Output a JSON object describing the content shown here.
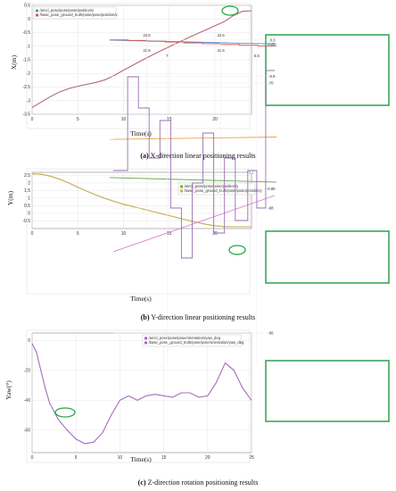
{
  "colors": {
    "frame": "#2e9e4a",
    "zoom_frame": "#3aa65a",
    "ellipse": "#22a845",
    "blue": "#5b8fd6",
    "red": "#d9534f",
    "green": "#6ab04c",
    "orange": "#e8a24a",
    "purple": "#b05ad0",
    "mauve": "#9b6fb3"
  },
  "captions": {
    "a_letter": "(a)",
    "a_text": " X-direction linear positioning results",
    "b_letter": "(b)",
    "b_text": " Y-direction linear positioning results",
    "c_letter": "(c)",
    "c_text": " Z-direction rotation positioning results"
  },
  "chart_data": [
    {
      "type": "line",
      "panel": "a",
      "xlabel": "Time(s)",
      "ylabel": "X(m)",
      "xlim": [
        0,
        24
      ],
      "ylim": [
        -3.5,
        0.5
      ],
      "xticks": [
        "0",
        "5",
        "10",
        "15",
        "20"
      ],
      "yticks": [
        "0.5",
        "0",
        "-0.5",
        "-1",
        "-1.5",
        "-2",
        "-2.5",
        "-3",
        "-3.5"
      ],
      "legend": [
        "/amcl_pose/pose/pose/position/x",
        "/base_pose_ground_truth/pose/pose/position/x"
      ],
      "series": [
        {
          "name": "/amcl_pose/pose/pose/position/x",
          "x": [
            0,
            1,
            2,
            3,
            4,
            5,
            6,
            7,
            8,
            9,
            10,
            11,
            12,
            13,
            14,
            15,
            16,
            17,
            18,
            19,
            20,
            21,
            22,
            23,
            24
          ],
          "y": [
            -3.25,
            -3.05,
            -2.85,
            -2.68,
            -2.56,
            -2.47,
            -2.4,
            -2.33,
            -2.23,
            -2.07,
            -1.88,
            -1.7,
            -1.52,
            -1.35,
            -1.18,
            -1.02,
            -0.86,
            -0.7,
            -0.55,
            -0.4,
            -0.25,
            -0.1,
            0.12,
            0.28,
            0.3
          ]
        },
        {
          "name": "/base_pose_ground_truth/pose/pose/position/x",
          "x": [
            0,
            1,
            2,
            3,
            4,
            5,
            6,
            7,
            8,
            9,
            10,
            11,
            12,
            13,
            14,
            15,
            16,
            17,
            18,
            19,
            20,
            21,
            22,
            23,
            24
          ],
          "y": [
            -3.25,
            -3.05,
            -2.85,
            -2.68,
            -2.56,
            -2.47,
            -2.4,
            -2.33,
            -2.23,
            -2.07,
            -1.88,
            -1.7,
            -1.52,
            -1.35,
            -1.18,
            -1.02,
            -0.86,
            -0.7,
            -0.55,
            -0.4,
            -0.25,
            -0.1,
            0.12,
            0.28,
            0.3
          ]
        }
      ],
      "inset": {
        "xticks": [
          "22.6",
          "22.8"
        ],
        "yticks": [
          "0.3",
          "0.25"
        ],
        "xlim": [
          22.45,
          22.9
        ],
        "ylim": [
          0.22,
          0.31
        ],
        "series": [
          {
            "name": "blue",
            "x": [
              22.45,
              22.9
            ],
            "y": [
              0.25,
              0.3
            ]
          },
          {
            "name": "red",
            "steps": [
              [
                22.45,
                0.225
              ],
              [
                22.5,
                0.225
              ],
              [
                22.5,
                0.235
              ],
              [
                22.55,
                0.235
              ],
              [
                22.55,
                0.245
              ],
              [
                22.6,
                0.245
              ],
              [
                22.6,
                0.255
              ],
              [
                22.65,
                0.255
              ],
              [
                22.65,
                0.265
              ],
              [
                22.7,
                0.265
              ],
              [
                22.7,
                0.275
              ],
              [
                22.75,
                0.275
              ],
              [
                22.75,
                0.285
              ],
              [
                22.8,
                0.285
              ],
              [
                22.8,
                0.295
              ],
              [
                22.85,
                0.295
              ],
              [
                22.85,
                0.302
              ],
              [
                22.9,
                0.302
              ]
            ]
          }
        ]
      }
    },
    {
      "type": "line",
      "panel": "b",
      "xlabel": "Time(s)",
      "ylabel": "Y(m)",
      "xlim": [
        0,
        24
      ],
      "ylim": [
        -1,
        2.7
      ],
      "xticks": [
        "0",
        "5",
        "10",
        "15",
        "20"
      ],
      "yticks": [
        "2.5",
        "2",
        "1.5",
        "1",
        "0.5",
        "0",
        "-0.5"
      ],
      "legend": [
        "/amcl_pose/pose/pose/position/y",
        "/base_pose_ground_truth/pose/pose/position/y"
      ],
      "series": [
        {
          "name": "/amcl_pose/pose/pose/position/y",
          "x": [
            0,
            1,
            2,
            3,
            4,
            5,
            6,
            7,
            8,
            9,
            10,
            11,
            12,
            13,
            14,
            15,
            16,
            17,
            18,
            19,
            20,
            21,
            22,
            23,
            24
          ],
          "y": [
            2.6,
            2.57,
            2.45,
            2.25,
            2.0,
            1.72,
            1.45,
            1.2,
            0.98,
            0.78,
            0.6,
            0.45,
            0.3,
            0.15,
            0.0,
            -0.15,
            -0.3,
            -0.45,
            -0.6,
            -0.72,
            -0.82,
            -0.87,
            -0.88,
            -0.88,
            -0.88
          ]
        },
        {
          "name": "/base_pose_ground_truth/pose/pose/position/y",
          "x": [
            0,
            1,
            2,
            3,
            4,
            5,
            6,
            7,
            8,
            9,
            10,
            11,
            12,
            13,
            14,
            15,
            16,
            17,
            18,
            19,
            20,
            21,
            22,
            23,
            24
          ],
          "y": [
            2.6,
            2.57,
            2.45,
            2.25,
            2.0,
            1.72,
            1.45,
            1.2,
            0.98,
            0.78,
            0.6,
            0.45,
            0.3,
            0.15,
            0.0,
            -0.15,
            -0.3,
            -0.45,
            -0.6,
            -0.72,
            -0.82,
            -0.87,
            -0.88,
            -0.88,
            -0.88
          ]
        }
      ],
      "inset": {
        "xticks": [
          "22.6",
          "22.8"
        ],
        "yticks": [
          "-0.85",
          "-0.9"
        ],
        "xlim": [
          22.45,
          22.9
        ],
        "ylim": [
          -0.92,
          -0.83
        ],
        "series": [
          {
            "name": "green",
            "x": [
              22.45,
              22.9
            ],
            "y": [
              -0.853,
              -0.855
            ]
          },
          {
            "name": "orange",
            "x": [
              22.45,
              22.9
            ],
            "y": [
              -0.873,
              -0.872
            ]
          }
        ]
      }
    },
    {
      "type": "line",
      "panel": "c",
      "xlabel": "Time(s)",
      "ylabel": "Yaw(°)",
      "xlim": [
        0,
        25
      ],
      "ylim": [
        -75,
        5
      ],
      "xticks": [
        "0",
        "5",
        "10",
        "15",
        "20",
        "25"
      ],
      "yticks": [
        "0",
        "-20",
        "-40",
        "-60"
      ],
      "legend": [
        "/amcl_pose/pose/pose/orientation/yaw_deg",
        "/base_pose_ground_truth/pose/pose/orientation/yaw_deg"
      ],
      "series": [
        {
          "name": "/amcl_pose/pose/pose/orientation/yaw_deg",
          "x": [
            0,
            0.5,
            1,
            1.5,
            2,
            3,
            4,
            5,
            6,
            7,
            8,
            9,
            10,
            11,
            12,
            13,
            14,
            15,
            16,
            17,
            18,
            19,
            20,
            21,
            22,
            23,
            24,
            25
          ],
          "y": [
            -2,
            -8,
            -20,
            -32,
            -42,
            -53,
            -60,
            -66,
            -69,
            -68,
            -62,
            -50,
            -40,
            -37,
            -40,
            -37,
            -36,
            -37,
            -38,
            -35,
            -35,
            -38,
            -37,
            -28,
            -15,
            -20,
            -32,
            -40
          ]
        },
        {
          "name": "/base_pose_ground_truth/pose/pose/orientation/yaw_deg",
          "x": [
            0,
            0.5,
            1,
            1.5,
            2,
            3,
            4,
            5,
            6,
            7,
            8,
            9,
            10,
            11,
            12,
            13,
            14,
            15,
            16,
            17,
            18,
            19,
            20,
            21,
            22,
            23,
            24,
            25
          ],
          "y": [
            -2,
            -8,
            -20,
            -32,
            -42,
            -53,
            -60,
            -66,
            -69,
            -68,
            -62,
            -50,
            -40,
            -37,
            -40,
            -37,
            -36,
            -37,
            -38,
            -35,
            -35,
            -38,
            -37,
            -28,
            -15,
            -20,
            -32,
            -40
          ]
        }
      ],
      "inset": {
        "xticks": [
          "6.5",
          "7"
        ],
        "yticks": [
          "-66",
          "-68",
          "-70"
        ],
        "xlim": [
          6.4,
          7.3
        ],
        "ylim": [
          -70.5,
          -65.5
        ],
        "series": [
          {
            "name": "pink",
            "x": [
              6.4,
              7.3
            ],
            "y": [
              -68.2,
              -67.3
            ]
          },
          {
            "name": "mauve",
            "steps": [
              [
                6.4,
                -70.2
              ],
              [
                6.45,
                -70.2
              ],
              [
                6.45,
                -68.0
              ],
              [
                6.5,
                -68.0
              ],
              [
                6.5,
                -68.6
              ],
              [
                6.55,
                -68.6
              ],
              [
                6.55,
                -67.8
              ],
              [
                6.62,
                -67.8
              ],
              [
                6.62,
                -68.8
              ],
              [
                6.68,
                -68.8
              ],
              [
                6.68,
                -67.6
              ],
              [
                6.74,
                -67.6
              ],
              [
                6.74,
                -69.2
              ],
              [
                6.8,
                -69.2
              ],
              [
                6.8,
                -68.4
              ],
              [
                6.86,
                -68.4
              ],
              [
                6.86,
                -67.2
              ],
              [
                6.92,
                -67.2
              ],
              [
                6.92,
                -68.0
              ],
              [
                6.98,
                -68.0
              ],
              [
                6.98,
                -69.4
              ],
              [
                7.04,
                -69.4
              ],
              [
                7.04,
                -68.8
              ],
              [
                7.1,
                -68.8
              ],
              [
                7.1,
                -69.6
              ],
              [
                7.16,
                -69.6
              ],
              [
                7.16,
                -70.1
              ],
              [
                7.22,
                -70.1
              ],
              [
                7.22,
                -68.6
              ],
              [
                7.3,
                -68.6
              ]
            ]
          }
        ]
      }
    }
  ]
}
